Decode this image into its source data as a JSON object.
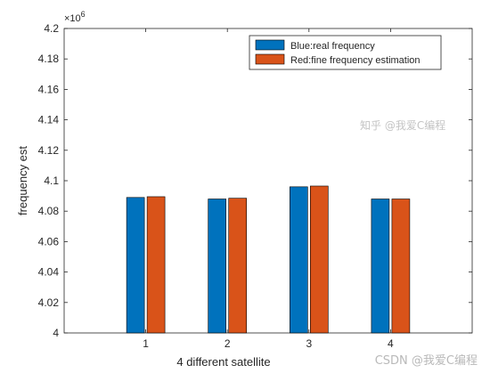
{
  "chart_data": {
    "type": "bar",
    "categories": [
      "1",
      "2",
      "3",
      "4"
    ],
    "series": [
      {
        "name": "Blue:real frequency",
        "color": "#0072BD",
        "values": [
          4089000,
          4088000,
          4096000,
          4088000
        ]
      },
      {
        "name": "Red:fine frequency estimation",
        "color": "#D95319",
        "values": [
          4089500,
          4088500,
          4096500,
          4088000
        ]
      }
    ],
    "xlabel": "4 different satellite",
    "ylabel": "frequency est",
    "ylim": [
      4000000,
      4200000
    ],
    "yticks": [
      "4",
      "4.02",
      "4.04",
      "4.06",
      "4.08",
      "4.1",
      "4.12",
      "4.14",
      "4.16",
      "4.18",
      "4.2"
    ],
    "y_exponent": "×10^6",
    "legend_position": "top-right",
    "grid": false
  },
  "watermark": {
    "top": "知乎 @我爱C编程",
    "bottom": "CSDN @我爱C编程"
  }
}
